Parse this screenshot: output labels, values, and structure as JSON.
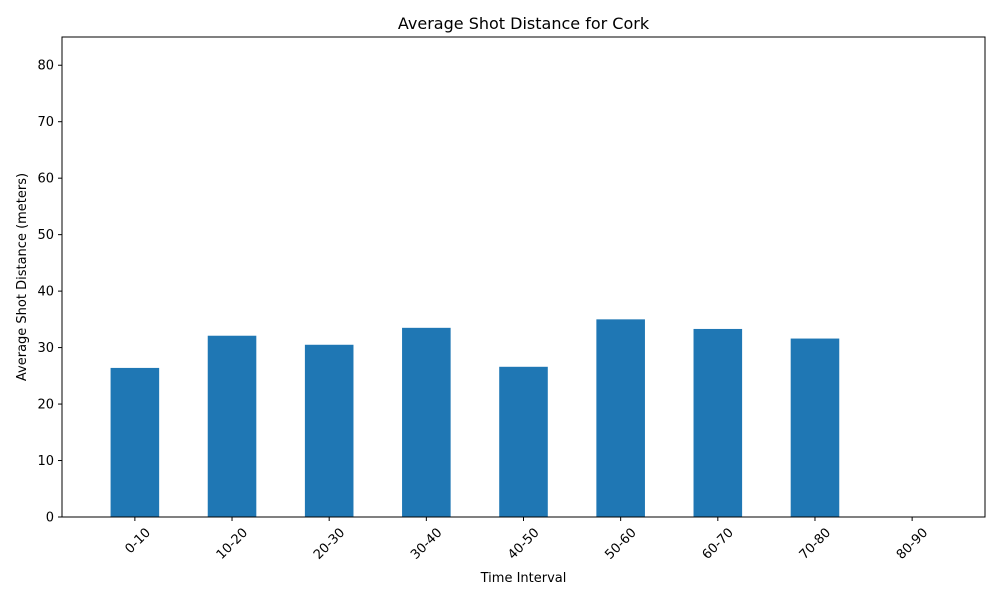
{
  "chart_data": {
    "type": "bar",
    "title": "Average Shot Distance for Cork",
    "xlabel": "Time Interval",
    "ylabel": "Average Shot Distance (meters)",
    "categories": [
      "0-10",
      "10-20",
      "20-30",
      "30-40",
      "40-50",
      "50-60",
      "60-70",
      "70-80",
      "80-90"
    ],
    "values": [
      26.4,
      32.1,
      30.5,
      33.5,
      26.6,
      35.0,
      33.3,
      31.6,
      null
    ],
    "ylim": [
      0,
      85
    ],
    "yticks": [
      0,
      10,
      20,
      30,
      40,
      50,
      60,
      70,
      80
    ],
    "grid": false,
    "bar_color": "#1f77b4"
  }
}
